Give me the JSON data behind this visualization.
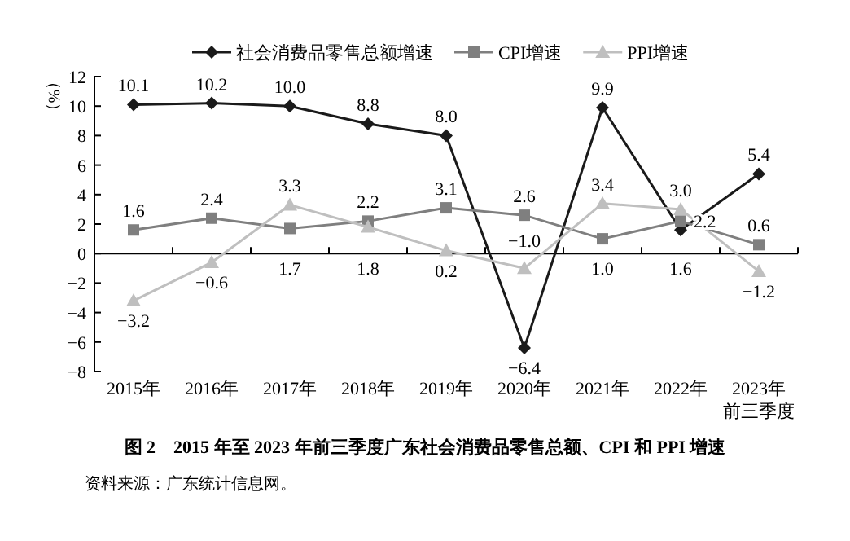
{
  "chart_data": {
    "type": "line",
    "title": "图 2　2015 年至 2023 年前三季度广东社会消费品零售总额、CPI 和 PPI 增速",
    "ylabel": "（%）",
    "annotations": [
      "资料来源：广东统计信息网。"
    ],
    "categories": [
      "2015年",
      "2016年",
      "2017年",
      "2018年",
      "2019年",
      "2020年",
      "2021年",
      "2022年",
      "2023年前三季度"
    ],
    "series": [
      {
        "name": "社会消费品零售总额增速",
        "color": "#1a1a1a",
        "marker": "diamond",
        "values": [
          10.1,
          10.2,
          10.0,
          8.8,
          8.0,
          -6.4,
          9.9,
          1.6,
          5.4
        ],
        "value_labels": [
          "10.1",
          "10.2",
          "10.0",
          "8.8",
          "8.0",
          "−6.4",
          "9.9",
          "1.6",
          "5.4"
        ]
      },
      {
        "name": "CPI增速",
        "color": "#7f7f7f",
        "marker": "square",
        "values": [
          1.6,
          2.4,
          1.7,
          2.2,
          3.1,
          2.6,
          1.0,
          2.2,
          0.6
        ],
        "value_labels": [
          "1.6",
          "2.4",
          "1.7",
          "2.2",
          "3.1",
          "2.6",
          "1.0",
          "2.2",
          "0.6"
        ]
      },
      {
        "name": "PPI增速",
        "color": "#bfbfbf",
        "marker": "triangle",
        "values": [
          -3.2,
          -0.6,
          3.3,
          1.8,
          0.2,
          -1.0,
          3.4,
          3.0,
          -1.2
        ],
        "value_labels": [
          "−3.2",
          "−0.6",
          "3.3",
          "1.8",
          "0.2",
          "−1.0",
          "3.4",
          "3.0",
          "−1.2"
        ]
      }
    ],
    "ylim": [
      -8,
      12
    ],
    "yticks": [
      -8,
      -6,
      -4,
      -2,
      0,
      2,
      4,
      6,
      8,
      10,
      12
    ],
    "legend": "top",
    "line_style": "solid"
  }
}
